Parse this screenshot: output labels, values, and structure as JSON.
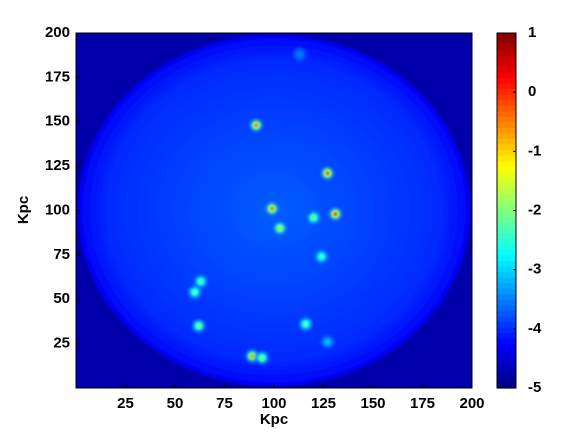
{
  "chart_data": {
    "type": "heatmap",
    "colormap": "jet",
    "xlabel": "Kpc",
    "ylabel": "Kpc",
    "xlim": [
      0,
      200
    ],
    "ylim": [
      0,
      200
    ],
    "xticks": [
      25,
      50,
      75,
      100,
      125,
      150,
      175,
      200
    ],
    "yticks": [
      25,
      50,
      75,
      100,
      125,
      150,
      175,
      200
    ],
    "clim": [
      -5,
      1
    ],
    "cticks": [
      -5,
      -4,
      -3,
      -2,
      -1,
      0,
      1
    ],
    "background_value": -4.75,
    "disk": {
      "cx": 100,
      "cy": 100,
      "r": 99,
      "center_value": -3.7,
      "edge_value": -4.3
    },
    "sources": {
      "x": [
        113,
        91,
        127,
        99,
        103,
        120,
        131,
        124,
        63,
        60,
        62,
        116,
        127,
        89,
        94
      ],
      "y": [
        188,
        148,
        121,
        101,
        90,
        96,
        98,
        74,
        60,
        54,
        35,
        36,
        26,
        18,
        17
      ],
      "values": [
        -3.5,
        -0.5,
        -0.3,
        -0.5,
        -1.2,
        -1.6,
        -0.2,
        -2.0,
        -1.9,
        -1.8,
        -1.6,
        -1.8,
        -3.0,
        -0.7,
        -1.6
      ]
    }
  }
}
